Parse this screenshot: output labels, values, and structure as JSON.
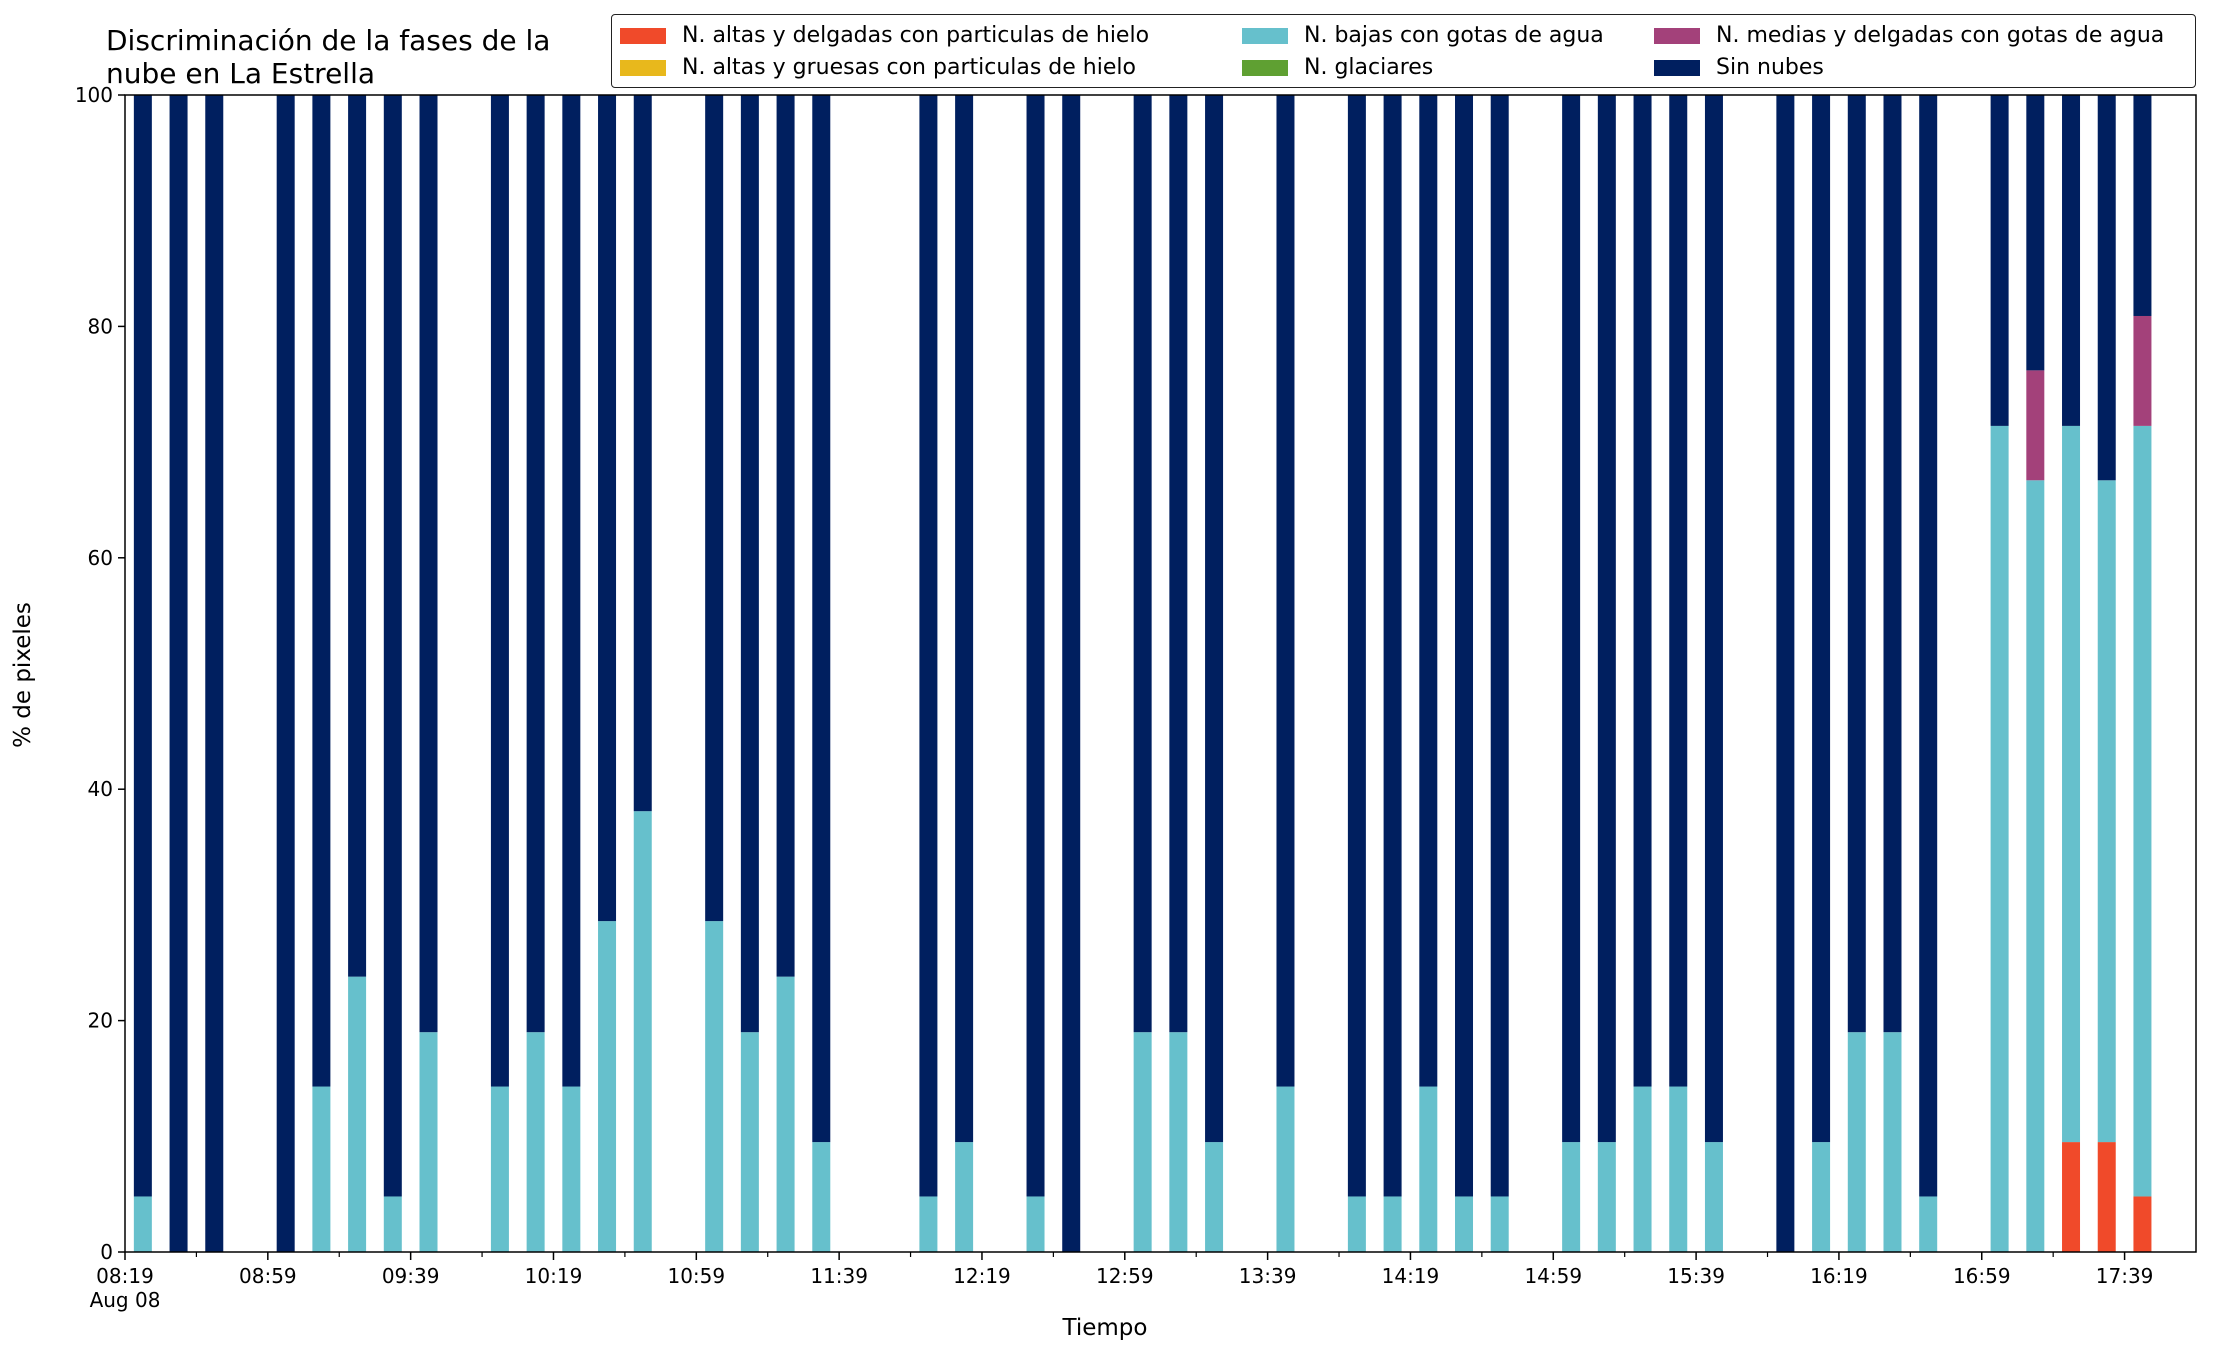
{
  "chart_data": {
    "type": "bar",
    "stacked": true,
    "title": "Discriminación de la fases de la\nnube en La Estrella",
    "title_lines": [
      "Discriminación de la fases de la",
      "nube en La Estrella"
    ],
    "xlabel": "Tiempo",
    "ylabel": "% de pixeles",
    "ylim": [
      0,
      100
    ],
    "yticks": [
      0,
      20,
      40,
      60,
      80,
      100
    ],
    "xtick_labels": [
      "08:19",
      "08:59",
      "09:39",
      "10:19",
      "10:59",
      "11:39",
      "12:19",
      "12:59",
      "13:39",
      "14:19",
      "14:59",
      "15:39",
      "16:19",
      "16:59",
      "17:39"
    ],
    "xtick_sublabel": "Aug 08",
    "x_start": "08:19",
    "x_end": "17:59",
    "legend_position": "top-right",
    "grid": false,
    "series": [
      {
        "name": "N. altas y delgadas con particulas de hielo",
        "color": "#f04a2a"
      },
      {
        "name": "N. altas y gruesas con particulas de hielo",
        "color": "#e8b81c"
      },
      {
        "name": "N. bajas con gotas de agua",
        "color": "#66c0cc"
      },
      {
        "name": "N. glaciares",
        "color": "#5fa032"
      },
      {
        "name": "N. medias y delgadas con gotas de agua",
        "color": "#a3417a"
      },
      {
        "name": "Sin nubes",
        "color": "#001f5f"
      }
    ],
    "bars": [
      {
        "time": "08:24",
        "values": [
          0,
          0,
          4.8,
          0,
          0,
          95.2
        ]
      },
      {
        "time": "08:34",
        "values": [
          0,
          0,
          0,
          0,
          0,
          100
        ]
      },
      {
        "time": "08:44",
        "values": [
          0,
          0,
          0,
          0,
          0,
          100
        ]
      },
      {
        "time": "09:04",
        "values": [
          0,
          0,
          0,
          0,
          0,
          100
        ]
      },
      {
        "time": "09:14",
        "values": [
          0,
          0,
          14.3,
          0,
          0,
          85.7
        ]
      },
      {
        "time": "09:24",
        "values": [
          0,
          0,
          23.8,
          0,
          0,
          76.2
        ]
      },
      {
        "time": "09:34",
        "values": [
          0,
          0,
          4.8,
          0,
          0,
          95.2
        ]
      },
      {
        "time": "09:44",
        "values": [
          0,
          0,
          19.0,
          0,
          0,
          81.0
        ]
      },
      {
        "time": "10:04",
        "values": [
          0,
          0,
          14.3,
          0,
          0,
          85.7
        ]
      },
      {
        "time": "10:14",
        "values": [
          0,
          0,
          19.0,
          0,
          0,
          81.0
        ]
      },
      {
        "time": "10:24",
        "values": [
          0,
          0,
          14.3,
          0,
          0,
          85.7
        ]
      },
      {
        "time": "10:34",
        "values": [
          0,
          0,
          28.6,
          0,
          0,
          71.4
        ]
      },
      {
        "time": "10:44",
        "values": [
          0,
          0,
          38.1,
          0,
          0,
          61.9
        ]
      },
      {
        "time": "11:04",
        "values": [
          0,
          0,
          28.6,
          0,
          0,
          71.4
        ]
      },
      {
        "time": "11:14",
        "values": [
          0,
          0,
          19.0,
          0,
          0,
          81.0
        ]
      },
      {
        "time": "11:24",
        "values": [
          0,
          0,
          23.8,
          0,
          0,
          76.2
        ]
      },
      {
        "time": "11:34",
        "values": [
          0,
          0,
          9.5,
          0,
          0,
          90.5
        ]
      },
      {
        "time": "12:04",
        "values": [
          0,
          0,
          4.8,
          0,
          0,
          95.2
        ]
      },
      {
        "time": "12:14",
        "values": [
          0,
          0,
          9.5,
          0,
          0,
          90.5
        ]
      },
      {
        "time": "12:34",
        "values": [
          0,
          0,
          4.8,
          0,
          0,
          95.2
        ]
      },
      {
        "time": "12:44",
        "values": [
          0,
          0,
          0,
          0,
          0,
          100
        ]
      },
      {
        "time": "13:04",
        "values": [
          0,
          0,
          19.0,
          0,
          0,
          81.0
        ]
      },
      {
        "time": "13:14",
        "values": [
          0,
          0,
          19.0,
          0,
          0,
          81.0
        ]
      },
      {
        "time": "13:24",
        "values": [
          0,
          0,
          9.5,
          0,
          0,
          90.5
        ]
      },
      {
        "time": "13:44",
        "values": [
          0,
          0,
          14.3,
          0,
          0,
          85.7
        ]
      },
      {
        "time": "14:04",
        "values": [
          0,
          0,
          4.8,
          0,
          0,
          95.2
        ]
      },
      {
        "time": "14:14",
        "values": [
          0,
          0,
          4.8,
          0,
          0,
          95.2
        ]
      },
      {
        "time": "14:24",
        "values": [
          0,
          0,
          14.3,
          0,
          0,
          85.7
        ]
      },
      {
        "time": "14:34",
        "values": [
          0,
          0,
          4.8,
          0,
          0,
          95.2
        ]
      },
      {
        "time": "14:44",
        "values": [
          0,
          0,
          4.8,
          0,
          0,
          95.2
        ]
      },
      {
        "time": "15:04",
        "values": [
          0,
          0,
          9.5,
          0,
          0,
          90.5
        ]
      },
      {
        "time": "15:14",
        "values": [
          0,
          0,
          9.5,
          0,
          0,
          90.5
        ]
      },
      {
        "time": "15:24",
        "values": [
          0,
          0,
          14.3,
          0,
          0,
          85.7
        ]
      },
      {
        "time": "15:34",
        "values": [
          0,
          0,
          14.3,
          0,
          0,
          85.7
        ]
      },
      {
        "time": "15:44",
        "values": [
          0,
          0,
          9.5,
          0,
          0,
          90.5
        ]
      },
      {
        "time": "16:04",
        "values": [
          0,
          0,
          0,
          0,
          0,
          100
        ]
      },
      {
        "time": "16:14",
        "values": [
          0,
          0,
          9.5,
          0,
          0,
          90.5
        ]
      },
      {
        "time": "16:24",
        "values": [
          0,
          0,
          19.0,
          0,
          0,
          81.0
        ]
      },
      {
        "time": "16:34",
        "values": [
          0,
          0,
          19.0,
          0,
          0,
          81.0
        ]
      },
      {
        "time": "16:44",
        "values": [
          0,
          0,
          4.8,
          0,
          0,
          95.2
        ]
      },
      {
        "time": "17:04",
        "values": [
          0,
          0,
          71.4,
          0,
          0,
          28.6
        ]
      },
      {
        "time": "17:14",
        "values": [
          0,
          0,
          66.7,
          0,
          9.5,
          23.8
        ]
      },
      {
        "time": "17:24",
        "values": [
          9.5,
          0,
          61.9,
          0,
          0,
          28.6
        ]
      },
      {
        "time": "17:34",
        "values": [
          9.5,
          0,
          57.2,
          0,
          0,
          33.3
        ]
      },
      {
        "time": "17:44",
        "values": [
          4.8,
          0,
          66.6,
          0,
          9.5,
          19.1
        ]
      }
    ]
  }
}
